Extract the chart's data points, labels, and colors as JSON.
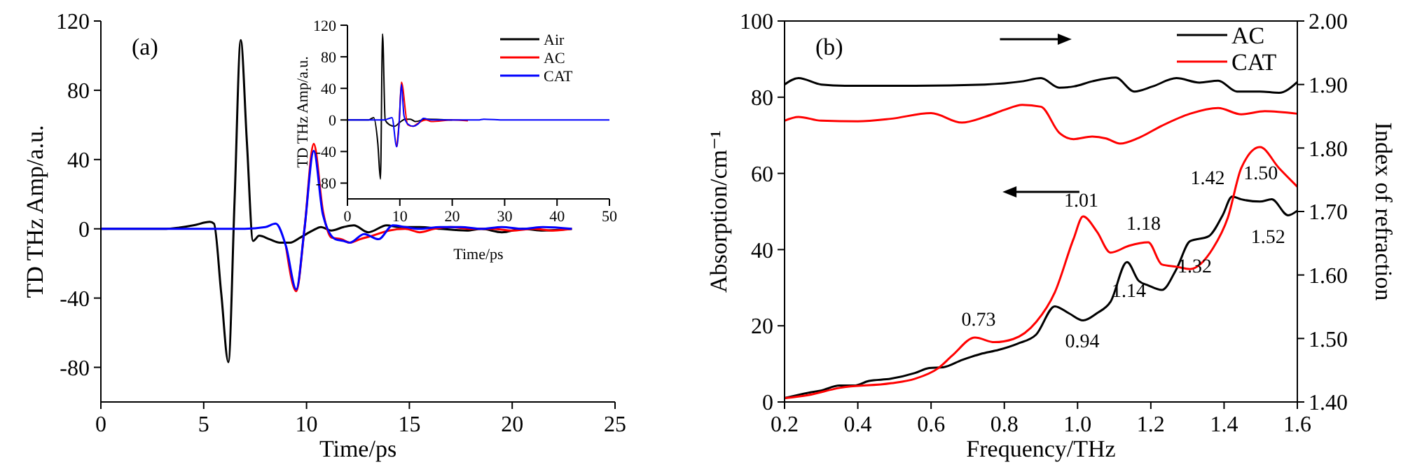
{
  "chart_data": [
    {
      "type": "line",
      "xlabel": "Time/ps",
      "ylabel": "TD THz Amp/a.u.",
      "annotations": [
        "(a)"
      ],
      "xlim": [
        0,
        25
      ],
      "xticks": [
        0,
        5,
        10,
        15,
        20,
        25
      ],
      "ylim": [
        -100,
        120
      ],
      "yticks": [
        -80,
        -40,
        0,
        40,
        80,
        120
      ],
      "series": [
        {
          "color": "#000000",
          "x": [
            0,
            3,
            4.5,
            5.3,
            5.5,
            5.85,
            6.2,
            6.5,
            6.8,
            7.1,
            7.4,
            7.7,
            8.2,
            8.7,
            9.2,
            9.7,
            10.3,
            10.7,
            11.2,
            11.8,
            12.3,
            13.0,
            13.9,
            14.5,
            15.5,
            16.5,
            17.8,
            18.5,
            19.5,
            20.5,
            21.5,
            22.9
          ],
          "values": [
            0,
            0,
            2,
            4,
            3,
            -37,
            -77,
            16,
            109,
            50,
            -7,
            -4,
            -6,
            -8,
            -8,
            -5,
            -1,
            1,
            -1,
            1,
            2,
            -2,
            2,
            1,
            1,
            0,
            -1,
            0,
            -2,
            0,
            -1,
            0
          ]
        },
        {
          "color": "#ff0000",
          "x": [
            9,
            9.5,
            9.9,
            10.35,
            10.8,
            11.2,
            11.7,
            12.1,
            12.6,
            13.2,
            14,
            14.8,
            15.5,
            16.2,
            17,
            18,
            19,
            20,
            21,
            22,
            22.9
          ],
          "values": [
            -10,
            -36,
            0,
            49,
            10,
            -5,
            -6,
            -8,
            -6,
            -4,
            -1,
            0,
            -2,
            0,
            1,
            0,
            0,
            -1,
            0,
            -1,
            0
          ]
        },
        {
          "color": "#0000ff",
          "x": [
            0,
            7,
            8,
            8.5,
            9,
            9.5,
            9.9,
            10.35,
            10.8,
            11.4,
            11.8,
            12.1,
            12.8,
            13.5,
            14.2,
            14.8,
            15.5,
            16.5,
            17.5,
            18.5,
            19.5,
            20.5,
            21.5,
            22.9
          ],
          "values": [
            0,
            0,
            1,
            3,
            -10,
            -35,
            0,
            45,
            8,
            -6,
            -7,
            -8,
            -3,
            -6,
            2,
            1,
            0,
            1,
            1,
            0,
            1,
            0,
            1,
            0
          ]
        }
      ]
    },
    {
      "type": "line",
      "xlabel": "Time/ps",
      "ylabel": "TD THz Amp/a.u.",
      "xlim": [
        0,
        50
      ],
      "xticks": [
        0,
        10,
        20,
        30,
        40,
        50
      ],
      "ylim": [
        -100,
        120
      ],
      "yticks": [
        -80,
        -40,
        0,
        40,
        80,
        120
      ],
      "legend": "top right",
      "series": [
        {
          "name": "Air",
          "color": "#000000",
          "x": [
            0,
            4,
            5,
            5.8,
            6.3,
            6.7,
            7.2,
            8,
            9,
            10,
            11,
            12,
            13,
            15,
            20
          ],
          "values": [
            0,
            0,
            3,
            -30,
            -75,
            109,
            0,
            -6,
            -8,
            -3,
            1,
            1,
            -2,
            1,
            0
          ]
        },
        {
          "name": "AC",
          "color": "#ff0000",
          "x": [
            9.4,
            9.9,
            10.3,
            11.5,
            12.5,
            13.5,
            15,
            16,
            20,
            23
          ],
          "values": [
            -34,
            0,
            48,
            -6,
            -8,
            -4,
            0,
            -2,
            0,
            -1
          ]
        },
        {
          "name": "CAT",
          "color": "#0000ff",
          "x": [
            0,
            7,
            8.5,
            9.4,
            9.9,
            10.3,
            10.8,
            11.5,
            12.5,
            13.5,
            14.5,
            16,
            20,
            25,
            26,
            30,
            40,
            50
          ],
          "values": [
            0,
            0,
            3,
            -34,
            0,
            45,
            5,
            -5,
            -8,
            -5,
            2,
            0,
            0,
            0,
            1,
            0,
            0,
            0
          ]
        }
      ]
    },
    {
      "type": "line",
      "xlabel": "Frequency/THz",
      "ylabel": "Absorption/cm⁻¹",
      "y2label": "Index of refraction",
      "legend": "top right",
      "xlim": [
        0.2,
        1.6
      ],
      "xticks": [
        {
          "value": 0.2,
          "label": "0.2"
        },
        {
          "value": 0.4,
          "label": "0.4"
        },
        {
          "value": 0.6,
          "label": "0.6"
        },
        {
          "value": 0.8,
          "label": "0.8"
        },
        {
          "value": 1.0,
          "label": "1.0"
        },
        {
          "value": 1.2,
          "label": "1.2"
        },
        {
          "value": 1.4,
          "label": "1.4"
        },
        {
          "value": 1.6,
          "label": "1.6"
        }
      ],
      "ylim": [
        0,
        100
      ],
      "yticks": [
        0,
        20,
        40,
        60,
        80,
        100
      ],
      "y2lim": [
        1.4,
        2.0
      ],
      "y2ticks": [
        {
          "value": 1.4,
          "label": "1.40"
        },
        {
          "value": 1.5,
          "label": "1.50"
        },
        {
          "value": 1.6,
          "label": "1.60"
        },
        {
          "value": 1.7,
          "label": "1.70"
        },
        {
          "value": 1.8,
          "label": "1.80"
        },
        {
          "value": 1.9,
          "label": "1.90"
        },
        {
          "value": 2.0,
          "label": "2.00"
        }
      ],
      "annotations": [
        "(b)",
        {
          "text": "0.73",
          "x": 0.73,
          "y": 16.7
        },
        {
          "text": "0.94",
          "x": 0.94,
          "y": 25
        },
        {
          "text": "1.01",
          "x": 1.01,
          "y": 48
        },
        {
          "text": "1.14",
          "x": 1.14,
          "y": 36
        },
        {
          "text": "1.18",
          "x": 1.18,
          "y": 41.8
        },
        {
          "text": "1.32",
          "x": 1.32,
          "y": 42.5
        },
        {
          "text": "1.42",
          "x": 1.42,
          "y": 53.9
        },
        {
          "text": "1.50",
          "x": 1.5,
          "y": 66.9
        },
        {
          "text": "1.52",
          "x": 1.52,
          "y": 53
        }
      ],
      "series": [
        {
          "name": "AC",
          "color": "#000000",
          "x": [
            0.2,
            0.264,
            0.3,
            0.35,
            0.39,
            0.43,
            0.49,
            0.556,
            0.595,
            0.633,
            0.684,
            0.735,
            0.785,
            0.836,
            0.887,
            0.938,
            0.976,
            1.015,
            1.053,
            1.09,
            1.135,
            1.167,
            1.193,
            1.23,
            1.27,
            1.307,
            1.358,
            1.396,
            1.422,
            1.447,
            1.498,
            1.53,
            1.575,
            1.6
          ],
          "values": [
            1,
            2.4,
            3,
            4.3,
            4.3,
            5.5,
            6.1,
            7.6,
            8.9,
            9.1,
            11,
            12.6,
            13.7,
            15.3,
            17.7,
            25.1,
            23.3,
            21.4,
            23.3,
            26.3,
            36.7,
            31.8,
            30.6,
            29.4,
            34.9,
            42.2,
            43.5,
            49,
            53.9,
            53.2,
            52.6,
            53.2,
            49,
            50.2
          ]
        },
        {
          "name": "CAT",
          "color": "#ff0000",
          "x": [
            0.2,
            0.264,
            0.35,
            0.49,
            0.556,
            0.62,
            0.658,
            0.72,
            0.773,
            0.824,
            0.887,
            0.938,
            0.989,
            1.015,
            1.053,
            1.09,
            1.14,
            1.193,
            1.23,
            1.27,
            1.307,
            1.37,
            1.41,
            1.447,
            1.498,
            1.55,
            1.6
          ],
          "values": [
            1,
            1.8,
            3.7,
            4.9,
            6.1,
            8.9,
            12.2,
            16.9,
            15.7,
            16.5,
            21,
            28.8,
            42.8,
            48.7,
            44.7,
            39.2,
            41,
            41.9,
            36.1,
            35.5,
            34.9,
            40.4,
            48.3,
            61.4,
            66.9,
            61.4,
            56.5
          ]
        },
        {
          "color": "#000000",
          "axis": "y2",
          "x": [
            0.2,
            0.238,
            0.3,
            0.365,
            0.556,
            0.747,
            0.849,
            0.9,
            0.95,
            0.99,
            1.04,
            1.104,
            1.155,
            1.205,
            1.27,
            1.333,
            1.384,
            1.435,
            1.498,
            1.55,
            1.6
          ],
          "values": [
            1.9,
            1.91,
            1.9,
            1.898,
            1.898,
            1.9,
            1.905,
            1.91,
            1.895,
            1.897,
            1.905,
            1.911,
            1.889,
            1.897,
            1.91,
            1.903,
            1.906,
            1.889,
            1.889,
            1.887,
            1.904
          ]
        },
        {
          "color": "#ff0000",
          "axis": "y2",
          "x": [
            0.2,
            0.238,
            0.3,
            0.4,
            0.49,
            0.6,
            0.684,
            0.747,
            0.8,
            0.849,
            0.9,
            0.95,
            0.989,
            1.04,
            1.078,
            1.116,
            1.167,
            1.23,
            1.307,
            1.384,
            1.447,
            1.511,
            1.6
          ],
          "values": [
            1.843,
            1.849,
            1.843,
            1.842,
            1.846,
            1.855,
            1.84,
            1.849,
            1.86,
            1.868,
            1.865,
            1.824,
            1.814,
            1.818,
            1.815,
            1.807,
            1.816,
            1.835,
            1.854,
            1.863,
            1.853,
            1.858,
            1.854
          ]
        }
      ]
    }
  ]
}
